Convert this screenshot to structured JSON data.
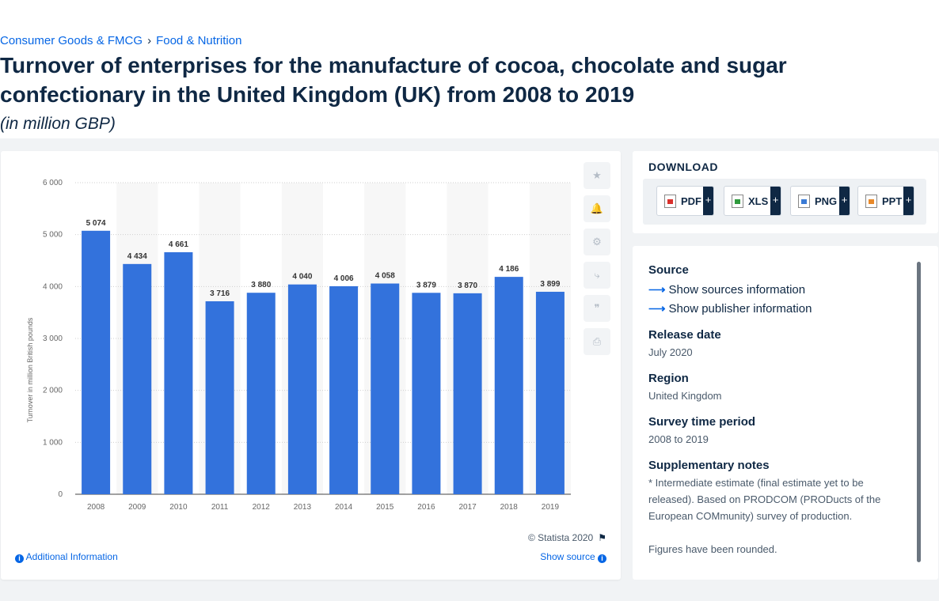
{
  "breadcrumb": {
    "items": [
      "Consumer Goods & FMCG",
      "Food & Nutrition"
    ],
    "separator": "›"
  },
  "title": "Turnover of enterprises for the manufacture of cocoa, chocolate and sugar confectionary in the United Kingdom (UK) from 2008 to 2019",
  "subtitle": "(in million GBP)",
  "chart_data": {
    "type": "bar",
    "categories": [
      "2008",
      "2009",
      "2010",
      "2011",
      "2012",
      "2013",
      "2014",
      "2015",
      "2016",
      "2017",
      "2018",
      "2019"
    ],
    "values": [
      5074,
      4434,
      4661,
      3716,
      3880,
      4040,
      4006,
      4058,
      3879,
      3870,
      4186,
      3899
    ],
    "data_labels": [
      "5 074",
      "4 434",
      "4 661",
      "3 716",
      "3 880",
      "4 040",
      "4 006",
      "4 058",
      "3 879",
      "3 870",
      "4 186",
      "3 899"
    ],
    "yticks": [
      0,
      1000,
      2000,
      3000,
      4000,
      5000,
      6000
    ],
    "ytick_labels": [
      "0",
      "1 000",
      "2 000",
      "3 000",
      "4 000",
      "5 000",
      "6 000"
    ],
    "ylim": [
      0,
      6000
    ],
    "xlabel": "",
    "ylabel": "Turnover in million British pounds",
    "bar_color": "#3372dc",
    "grid": true
  },
  "chart_footer": {
    "credit": "© Statista 2020",
    "additional_info": "Additional Information",
    "show_source": "Show source"
  },
  "tools": [
    {
      "icon": "star-icon",
      "glyph": "★"
    },
    {
      "icon": "bell-icon",
      "glyph": "🔔"
    },
    {
      "icon": "gear-icon",
      "glyph": "⚙"
    },
    {
      "icon": "share-icon",
      "glyph": "⤷"
    },
    {
      "icon": "quote-icon",
      "glyph": "❞"
    },
    {
      "icon": "print-icon",
      "glyph": "⎙"
    }
  ],
  "download": {
    "title": "DOWNLOAD",
    "buttons": [
      {
        "label": "PDF",
        "icon": "pdf-file-icon",
        "color": "#d9302c"
      },
      {
        "label": "XLS",
        "icon": "xls-file-icon",
        "color": "#2f9a3d"
      },
      {
        "label": "PNG",
        "icon": "png-file-icon",
        "color": "#3a7bd5"
      },
      {
        "label": "PPT",
        "icon": "ppt-file-icon",
        "color": "#e8892a"
      }
    ],
    "plus": "+"
  },
  "source": {
    "heading": "Source",
    "show_sources": "Show sources information",
    "show_publisher": "Show publisher information",
    "release_heading": "Release date",
    "release_value": "July 2020",
    "region_heading": "Region",
    "region_value": "United Kingdom",
    "survey_heading": "Survey time period",
    "survey_value": "2008 to 2019",
    "notes_heading": "Supplementary notes",
    "notes_value": "* Intermediate estimate (final estimate yet to be released). Based on PRODCOM (PRODucts of the European COMmunity) survey of production.",
    "notes_value2": "Figures have been rounded."
  }
}
